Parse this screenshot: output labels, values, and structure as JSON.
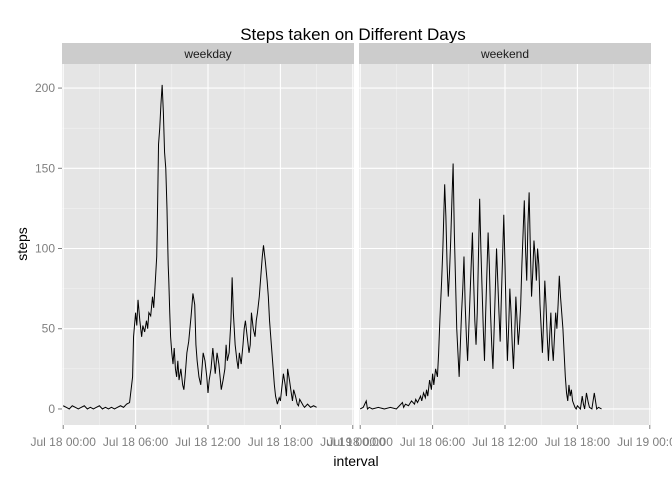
{
  "chart_data": {
    "type": "line",
    "title": "Steps taken on Different Days",
    "xlabel": "interval",
    "ylabel": "steps",
    "facets": [
      "weekday",
      "weekend"
    ],
    "x_tick_labels": [
      "Jul 18 00:00",
      "Jul 18 06:00",
      "Jul 18 12:00",
      "Jul 18 18:00",
      "Jul 19 00:00"
    ],
    "x_unit": "hours since Jul 18 00:00",
    "xlim": [
      -0.1,
      24.1
    ],
    "y_ticks": [
      0,
      50,
      100,
      150,
      200
    ],
    "ylim": [
      -10,
      215
    ],
    "grid": true,
    "line_color": "#000000",
    "series": [
      {
        "facet": "weekday",
        "points": [
          [
            0.0,
            2
          ],
          [
            0.25,
            1
          ],
          [
            0.5,
            0
          ],
          [
            0.75,
            2
          ],
          [
            1.0,
            1
          ],
          [
            1.25,
            0
          ],
          [
            1.5,
            1
          ],
          [
            1.75,
            2
          ],
          [
            2.0,
            0
          ],
          [
            2.25,
            1
          ],
          [
            2.5,
            0
          ],
          [
            2.75,
            1
          ],
          [
            3.0,
            2
          ],
          [
            3.25,
            0
          ],
          [
            3.5,
            1
          ],
          [
            3.75,
            0
          ],
          [
            4.0,
            1
          ],
          [
            4.25,
            0
          ],
          [
            4.5,
            1
          ],
          [
            4.75,
            2
          ],
          [
            5.0,
            1
          ],
          [
            5.25,
            3
          ],
          [
            5.5,
            4
          ],
          [
            5.75,
            20
          ],
          [
            5.83,
            45
          ],
          [
            6.0,
            60
          ],
          [
            6.1,
            52
          ],
          [
            6.2,
            68
          ],
          [
            6.35,
            55
          ],
          [
            6.5,
            45
          ],
          [
            6.6,
            52
          ],
          [
            6.75,
            48
          ],
          [
            6.9,
            55
          ],
          [
            7.0,
            50
          ],
          [
            7.1,
            60
          ],
          [
            7.25,
            58
          ],
          [
            7.4,
            70
          ],
          [
            7.5,
            63
          ],
          [
            7.6,
            75
          ],
          [
            7.75,
            95
          ],
          [
            7.83,
            130
          ],
          [
            7.9,
            165
          ],
          [
            8.0,
            175
          ],
          [
            8.1,
            190
          ],
          [
            8.2,
            202
          ],
          [
            8.3,
            185
          ],
          [
            8.4,
            160
          ],
          [
            8.5,
            150
          ],
          [
            8.6,
            125
          ],
          [
            8.7,
            90
          ],
          [
            8.75,
            80
          ],
          [
            8.83,
            60
          ],
          [
            8.9,
            45
          ],
          [
            9.0,
            35
          ],
          [
            9.1,
            28
          ],
          [
            9.2,
            38
          ],
          [
            9.3,
            25
          ],
          [
            9.4,
            20
          ],
          [
            9.5,
            30
          ],
          [
            9.6,
            18
          ],
          [
            9.75,
            25
          ],
          [
            9.9,
            15
          ],
          [
            10.0,
            12
          ],
          [
            10.1,
            20
          ],
          [
            10.25,
            35
          ],
          [
            10.4,
            42
          ],
          [
            10.5,
            50
          ],
          [
            10.6,
            58
          ],
          [
            10.75,
            72
          ],
          [
            10.9,
            65
          ],
          [
            11.0,
            40
          ],
          [
            11.1,
            30
          ],
          [
            11.25,
            20
          ],
          [
            11.4,
            15
          ],
          [
            11.5,
            25
          ],
          [
            11.6,
            35
          ],
          [
            11.75,
            30
          ],
          [
            11.9,
            20
          ],
          [
            12.0,
            10
          ],
          [
            12.1,
            18
          ],
          [
            12.25,
            25
          ],
          [
            12.4,
            38
          ],
          [
            12.5,
            30
          ],
          [
            12.6,
            22
          ],
          [
            12.75,
            35
          ],
          [
            12.9,
            28
          ],
          [
            13.0,
            20
          ],
          [
            13.1,
            12
          ],
          [
            13.25,
            18
          ],
          [
            13.4,
            25
          ],
          [
            13.5,
            40
          ],
          [
            13.6,
            30
          ],
          [
            13.75,
            35
          ],
          [
            13.9,
            55
          ],
          [
            14.0,
            82
          ],
          [
            14.1,
            60
          ],
          [
            14.25,
            40
          ],
          [
            14.4,
            30
          ],
          [
            14.5,
            25
          ],
          [
            14.6,
            35
          ],
          [
            14.75,
            28
          ],
          [
            14.9,
            40
          ],
          [
            15.0,
            50
          ],
          [
            15.1,
            55
          ],
          [
            15.25,
            45
          ],
          [
            15.4,
            35
          ],
          [
            15.5,
            40
          ],
          [
            15.6,
            60
          ],
          [
            15.75,
            50
          ],
          [
            15.9,
            45
          ],
          [
            16.0,
            55
          ],
          [
            16.1,
            60
          ],
          [
            16.25,
            70
          ],
          [
            16.4,
            85
          ],
          [
            16.5,
            95
          ],
          [
            16.6,
            102
          ],
          [
            16.75,
            92
          ],
          [
            16.9,
            80
          ],
          [
            17.0,
            70
          ],
          [
            17.1,
            55
          ],
          [
            17.25,
            40
          ],
          [
            17.4,
            25
          ],
          [
            17.5,
            15
          ],
          [
            17.6,
            8
          ],
          [
            17.75,
            3
          ],
          [
            17.9,
            7
          ],
          [
            18.0,
            5
          ],
          [
            18.1,
            12
          ],
          [
            18.25,
            22
          ],
          [
            18.4,
            15
          ],
          [
            18.5,
            8
          ],
          [
            18.6,
            25
          ],
          [
            18.75,
            18
          ],
          [
            18.9,
            10
          ],
          [
            19.0,
            5
          ],
          [
            19.1,
            12
          ],
          [
            19.25,
            8
          ],
          [
            19.4,
            3
          ],
          [
            19.5,
            2
          ],
          [
            19.6,
            6
          ],
          [
            19.75,
            4
          ],
          [
            19.9,
            2
          ],
          [
            20.0,
            1
          ],
          [
            20.25,
            3
          ],
          [
            20.5,
            1
          ],
          [
            20.75,
            2
          ],
          [
            21.0,
            1
          ]
        ]
      },
      {
        "facet": "weekend",
        "points": [
          [
            0.0,
            0
          ],
          [
            0.25,
            1
          ],
          [
            0.5,
            5
          ],
          [
            0.6,
            0
          ],
          [
            0.75,
            1
          ],
          [
            1.0,
            0
          ],
          [
            1.5,
            1
          ],
          [
            2.0,
            0
          ],
          [
            2.5,
            1
          ],
          [
            3.0,
            0
          ],
          [
            3.25,
            2
          ],
          [
            3.5,
            4
          ],
          [
            3.6,
            1
          ],
          [
            3.75,
            3
          ],
          [
            4.0,
            2
          ],
          [
            4.25,
            5
          ],
          [
            4.5,
            3
          ],
          [
            4.6,
            6
          ],
          [
            4.75,
            4
          ],
          [
            5.0,
            8
          ],
          [
            5.1,
            5
          ],
          [
            5.25,
            10
          ],
          [
            5.4,
            7
          ],
          [
            5.5,
            12
          ],
          [
            5.6,
            8
          ],
          [
            5.75,
            18
          ],
          [
            5.9,
            12
          ],
          [
            6.0,
            22
          ],
          [
            6.1,
            15
          ],
          [
            6.25,
            25
          ],
          [
            6.4,
            20
          ],
          [
            6.5,
            35
          ],
          [
            6.6,
            55
          ],
          [
            6.75,
            80
          ],
          [
            6.85,
            100
          ],
          [
            7.0,
            140
          ],
          [
            7.1,
            120
          ],
          [
            7.2,
            90
          ],
          [
            7.3,
            70
          ],
          [
            7.4,
            85
          ],
          [
            7.5,
            105
          ],
          [
            7.6,
            130
          ],
          [
            7.7,
            153
          ],
          [
            7.8,
            110
          ],
          [
            7.9,
            80
          ],
          [
            8.0,
            50
          ],
          [
            8.1,
            35
          ],
          [
            8.2,
            20
          ],
          [
            8.3,
            40
          ],
          [
            8.4,
            60
          ],
          [
            8.5,
            75
          ],
          [
            8.6,
            95
          ],
          [
            8.7,
            65
          ],
          [
            8.8,
            45
          ],
          [
            8.9,
            30
          ],
          [
            9.0,
            50
          ],
          [
            9.1,
            70
          ],
          [
            9.2,
            90
          ],
          [
            9.3,
            110
          ],
          [
            9.4,
            80
          ],
          [
            9.5,
            55
          ],
          [
            9.6,
            40
          ],
          [
            9.7,
            60
          ],
          [
            9.8,
            95
          ],
          [
            9.9,
            131
          ],
          [
            10.0,
            100
          ],
          [
            10.1,
            75
          ],
          [
            10.2,
            50
          ],
          [
            10.3,
            30
          ],
          [
            10.4,
            60
          ],
          [
            10.5,
            85
          ],
          [
            10.6,
            110
          ],
          [
            10.7,
            90
          ],
          [
            10.8,
            60
          ],
          [
            10.9,
            40
          ],
          [
            11.0,
            25
          ],
          [
            11.1,
            50
          ],
          [
            11.2,
            75
          ],
          [
            11.3,
            100
          ],
          [
            11.4,
            80
          ],
          [
            11.5,
            60
          ],
          [
            11.6,
            42
          ],
          [
            11.7,
            70
          ],
          [
            11.8,
            95
          ],
          [
            11.9,
            121
          ],
          [
            12.0,
            90
          ],
          [
            12.1,
            55
          ],
          [
            12.2,
            30
          ],
          [
            12.3,
            50
          ],
          [
            12.4,
            75
          ],
          [
            12.5,
            60
          ],
          [
            12.6,
            40
          ],
          [
            12.7,
            25
          ],
          [
            12.8,
            45
          ],
          [
            12.9,
            70
          ],
          [
            13.0,
            55
          ],
          [
            13.1,
            40
          ],
          [
            13.2,
            50
          ],
          [
            13.3,
            65
          ],
          [
            13.4,
            90
          ],
          [
            13.5,
            110
          ],
          [
            13.6,
            130
          ],
          [
            13.7,
            100
          ],
          [
            13.8,
            80
          ],
          [
            13.9,
            115
          ],
          [
            14.0,
            135
          ],
          [
            14.1,
            100
          ],
          [
            14.2,
            70
          ],
          [
            14.3,
            85
          ],
          [
            14.4,
            105
          ],
          [
            14.5,
            95
          ],
          [
            14.6,
            80
          ],
          [
            14.7,
            100
          ],
          [
            14.8,
            90
          ],
          [
            14.9,
            65
          ],
          [
            15.0,
            50
          ],
          [
            15.1,
            35
          ],
          [
            15.2,
            55
          ],
          [
            15.3,
            80
          ],
          [
            15.4,
            65
          ],
          [
            15.5,
            45
          ],
          [
            15.6,
            30
          ],
          [
            15.7,
            45
          ],
          [
            15.8,
            60
          ],
          [
            15.9,
            40
          ],
          [
            16.0,
            30
          ],
          [
            16.1,
            45
          ],
          [
            16.2,
            60
          ],
          [
            16.3,
            50
          ],
          [
            16.4,
            65
          ],
          [
            16.5,
            83
          ],
          [
            16.6,
            70
          ],
          [
            16.7,
            60
          ],
          [
            16.8,
            50
          ],
          [
            16.9,
            35
          ],
          [
            17.0,
            20
          ],
          [
            17.1,
            10
          ],
          [
            17.2,
            5
          ],
          [
            17.3,
            15
          ],
          [
            17.4,
            8
          ],
          [
            17.5,
            12
          ],
          [
            17.6,
            5
          ],
          [
            17.7,
            3
          ],
          [
            17.8,
            1
          ],
          [
            17.9,
            0
          ],
          [
            18.0,
            2
          ],
          [
            18.25,
            0
          ],
          [
            18.4,
            8
          ],
          [
            18.5,
            3
          ],
          [
            18.6,
            0
          ],
          [
            18.75,
            10
          ],
          [
            18.9,
            4
          ],
          [
            19.0,
            1
          ],
          [
            19.2,
            0
          ],
          [
            19.4,
            10
          ],
          [
            19.5,
            5
          ],
          [
            19.6,
            0
          ],
          [
            19.75,
            1
          ],
          [
            20.0,
            0
          ]
        ]
      }
    ]
  }
}
